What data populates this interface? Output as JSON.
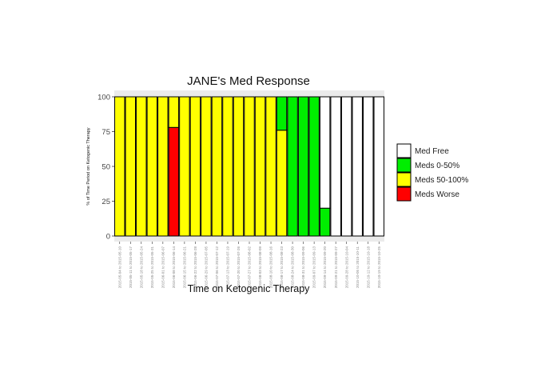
{
  "chart_data": {
    "type": "bar",
    "stacked": true,
    "title": "JANE's Med Response",
    "xlabel": "Time on Ketogenic Therapy",
    "ylabel": "% of Time Period on Ketogenic Therapy",
    "ylim": [
      0,
      100
    ],
    "yticks": [
      "0",
      "25",
      "50",
      "75",
      "100"
    ],
    "categories": [
      "2015-05-04 to 2015-05-10",
      "2015-05-11 to 2015-05-17",
      "2015-05-18 to 2015-05-24",
      "2015-05-25 to 2015-05-31",
      "2015-06-01 to 2015-06-07",
      "2015-06-08 to 2015-06-14",
      "2015-06-15 to 2015-06-21",
      "2015-06-22 to 2015-06-28",
      "2015-06-29 to 2015-07-05",
      "2015-07-06 to 2015-07-12",
      "2015-07-13 to 2015-07-19",
      "2015-07-20 to 2015-07-26",
      "2015-07-27 to 2015-08-02",
      "2015-08-03 to 2015-08-09",
      "2015-08-10 to 2015-08-16",
      "2015-08-17 to 2015-08-23",
      "2015-08-24 to 2015-08-30",
      "2015-08-31 to 2015-09-06",
      "2015-09-07 to 2015-09-13",
      "2015-09-14 to 2015-09-20",
      "2015-09-21 to 2015-09-27",
      "2015-09-28 to 2015-10-04",
      "2015-10-05 to 2015-10-11",
      "2015-10-12 to 2015-10-18",
      "2015-10-19 to 2015-10-25"
    ],
    "series": [
      {
        "name": "Med Free",
        "color": "#ffffff",
        "values": [
          0,
          0,
          0,
          0,
          0,
          0,
          0,
          0,
          0,
          0,
          0,
          0,
          0,
          0,
          0,
          0,
          0,
          0,
          0,
          80,
          100,
          100,
          100,
          100,
          100
        ]
      },
      {
        "name": "Meds 0-50%",
        "color": "#00ee00",
        "values": [
          0,
          0,
          0,
          0,
          0,
          0,
          0,
          0,
          0,
          0,
          0,
          0,
          0,
          0,
          0,
          24,
          100,
          100,
          100,
          20,
          0,
          0,
          0,
          0,
          0
        ]
      },
      {
        "name": "Meds 50-100%",
        "color": "#ffff00",
        "values": [
          100,
          100,
          100,
          100,
          100,
          22,
          100,
          100,
          100,
          100,
          100,
          100,
          100,
          100,
          100,
          76,
          0,
          0,
          0,
          0,
          0,
          0,
          0,
          0,
          0
        ]
      },
      {
        "name": "Meds Worse",
        "color": "#ff0000",
        "values": [
          0,
          0,
          0,
          0,
          0,
          78,
          0,
          0,
          0,
          0,
          0,
          0,
          0,
          0,
          0,
          0,
          0,
          0,
          0,
          0,
          0,
          0,
          0,
          0,
          0
        ]
      }
    ],
    "legend_order": [
      "Med Free",
      "Meds 0-50%",
      "Meds 50-100%",
      "Meds Worse"
    ],
    "legend_position": "right",
    "panel_background": "#ebebeb",
    "grid": false
  }
}
